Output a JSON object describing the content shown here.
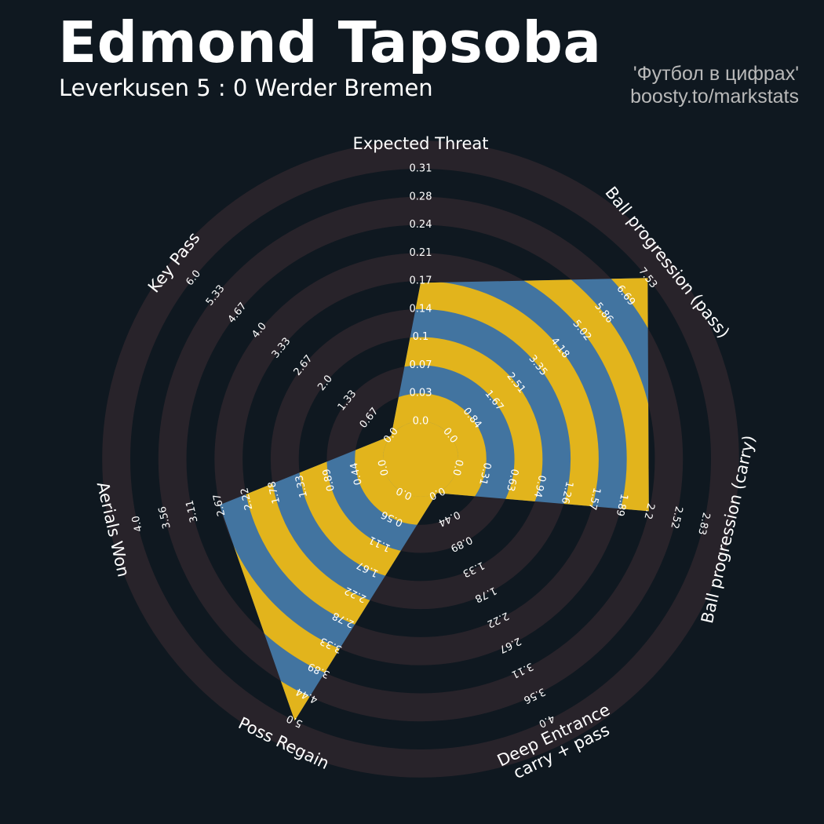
{
  "header": {
    "title": "Edmond Tapsoba",
    "subtitle": "Leverkusen 5 : 0 Werder Bremen",
    "credit_line1": "'Футбол в цифрах'",
    "credit_line2": "boosty.to/markstats"
  },
  "colors": {
    "background": "#0f1820",
    "ring": "#28232a",
    "series_blue": "#4274a0",
    "series_yellow": "#e2b41c",
    "text": "#ffffff",
    "credit": "#b9b9b9"
  },
  "chart_data": {
    "type": "radar",
    "title": "Edmond Tapsoba",
    "subtitle": "Leverkusen 5 : 0 Werder Bremen",
    "grid": true,
    "axes": [
      {
        "name": "Expected Threat",
        "value": 0.17,
        "range": [
          0.0,
          0.31
        ],
        "ticks": [
          "0.0",
          "0.03",
          "0.07",
          "0.1",
          "0.14",
          "0.17",
          "0.21",
          "0.24",
          "0.28",
          "0.31"
        ]
      },
      {
        "name": "Ball progression (pass)",
        "value": 7.53,
        "range": [
          0.0,
          7.53
        ],
        "ticks": [
          "0.0",
          "0.84",
          "1.67",
          "2.51",
          "3.35",
          "4.18",
          "5.02",
          "5.86",
          "6.69",
          "7.53"
        ]
      },
      {
        "name": "Ball progression (carry)",
        "value": 2.2,
        "range": [
          0.0,
          2.83
        ],
        "ticks": [
          "0.0",
          "0.31",
          "0.63",
          "0.94",
          "1.26",
          "1.57",
          "1.89",
          "2.2",
          "2.52",
          "2.83"
        ]
      },
      {
        "name": "Deep Entrance\ncarry + pass",
        "value": 0.0,
        "range": [
          0.0,
          4.0
        ],
        "ticks": [
          "0.0",
          "0.44",
          "0.89",
          "1.33",
          "1.78",
          "2.22",
          "2.67",
          "3.11",
          "3.56",
          "4.0"
        ]
      },
      {
        "name": "Poss Regain",
        "value": 5.0,
        "range": [
          0.0,
          5.0
        ],
        "ticks": [
          "0.0",
          "0.56",
          "1.11",
          "1.67",
          "2.22",
          "2.78",
          "3.33",
          "3.89",
          "4.44",
          "5.0"
        ]
      },
      {
        "name": "Aerials Won",
        "value": 2.67,
        "range": [
          0.0,
          4.0
        ],
        "ticks": [
          "0.0",
          "0.44",
          "0.89",
          "1.33",
          "1.78",
          "2.22",
          "2.67",
          "3.11",
          "3.56",
          "4.0"
        ]
      },
      {
        "name": "Key Pass",
        "value": 0.0,
        "range": [
          0.0,
          6.0
        ],
        "ticks": [
          "0.0",
          "0.67",
          "1.33",
          "2.0",
          "2.67",
          "3.33",
          "4.0",
          "4.67",
          "5.33",
          "6.0"
        ]
      }
    ]
  }
}
